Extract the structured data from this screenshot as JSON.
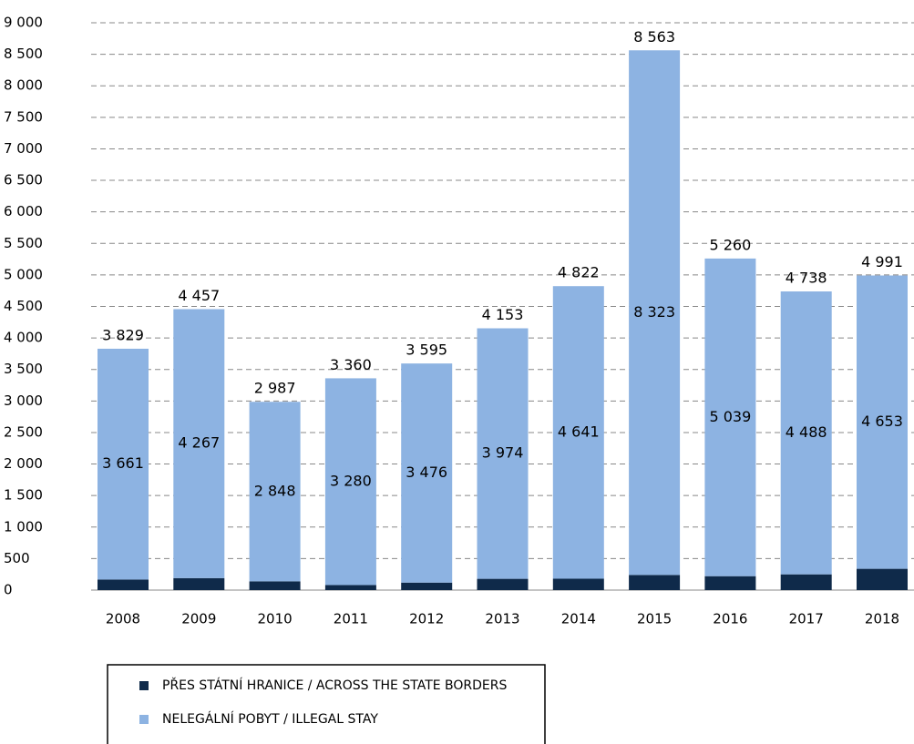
{
  "chart_data": {
    "type": "stacked_bar",
    "categories": [
      "2008",
      "2009",
      "2010",
      "2011",
      "2012",
      "2013",
      "2014",
      "2015",
      "2016",
      "2017",
      "2018"
    ],
    "series": [
      {
        "name": "PŘES STÁTNÍ HRANICE / ACROSS THE STATE BORDERS",
        "color": "#0f2a4a",
        "values": [
          168,
          190,
          139,
          80,
          119,
          179,
          181,
          240,
          221,
          250,
          338
        ]
      },
      {
        "name": "NELEGÁLNÍ POBYT / ILLEGAL STAY",
        "color": "#8db3e2",
        "values": [
          3661,
          4267,
          2848,
          3280,
          3476,
          3974,
          4641,
          8323,
          5039,
          4488,
          4653
        ],
        "value_labels": [
          "3 661",
          "4 267",
          "2 848",
          "3 280",
          "3 476",
          "3 974",
          "4 641",
          "8 323",
          "5 039",
          "4 488",
          "4 653"
        ]
      }
    ],
    "totals": [
      3829,
      4457,
      2987,
      3360,
      3595,
      4153,
      4822,
      8563,
      5260,
      4738,
      4991
    ],
    "total_labels": [
      "3 829",
      "4 457",
      "2 987",
      "3 360",
      "3 595",
      "4 153",
      "4 822",
      "8 563",
      "5 260",
      "4 738",
      "4 991"
    ],
    "ylim": [
      0,
      9000
    ],
    "yticks": [
      0,
      500,
      {
        "value": 1000,
        "label": "1 000"
      },
      {
        "value": 1500,
        "label": "1 500"
      },
      {
        "value": 2000,
        "label": "2 000"
      },
      {
        "value": 2500,
        "label": "2 500"
      },
      {
        "value": 3000,
        "label": "3 000"
      },
      {
        "value": 3500,
        "label": "3 500"
      },
      {
        "value": 4000,
        "label": "4 000"
      },
      {
        "value": 4500,
        "label": "4 500"
      },
      {
        "value": 5000,
        "label": "5 000"
      },
      {
        "value": 5500,
        "label": "5 500"
      },
      {
        "value": 6000,
        "label": "6 000"
      },
      {
        "value": 6500,
        "label": "6 500"
      },
      {
        "value": 7000,
        "label": "7 000"
      },
      {
        "value": 7500,
        "label": "7 500"
      },
      {
        "value": 8000,
        "label": "8 000"
      },
      {
        "value": 8500,
        "label": "8 500"
      },
      {
        "value": 9000,
        "label": "9 000"
      }
    ],
    "grid": true,
    "legend": "bottom"
  }
}
